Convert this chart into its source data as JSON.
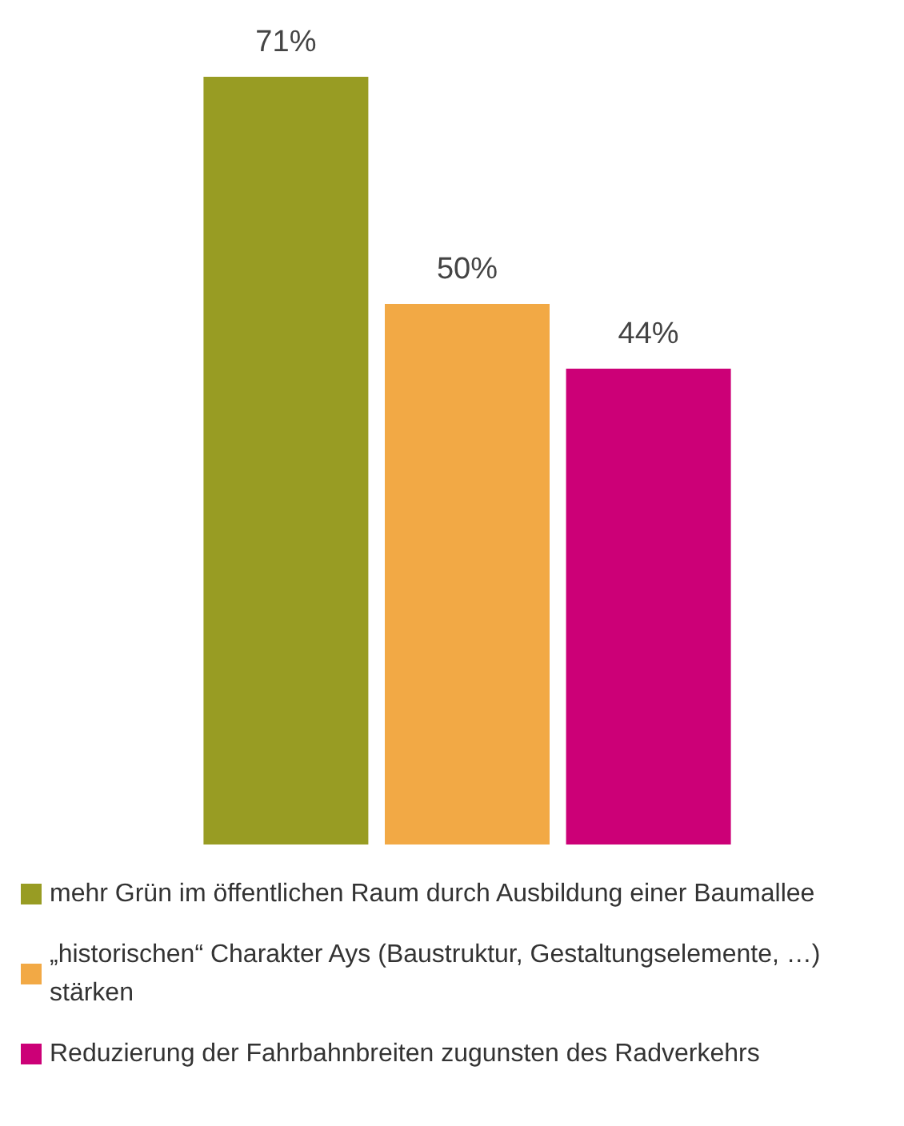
{
  "chart_data": {
    "type": "bar",
    "categories": [
      null
    ],
    "legend": "bottom",
    "data_labels": true,
    "series": [
      {
        "name": "mehr Grün im öffentlichen Raum durch Ausbildung einer Baumallee",
        "color": "#989c23",
        "values": [
          71
        ],
        "value_labels": [
          "71%"
        ]
      },
      {
        "name": "„historischen“ Charakter Ays (Baustruktur, Gestaltungselemente, …) stärken",
        "color": "#f2a945",
        "values": [
          50
        ],
        "value_labels": [
          "50%"
        ]
      },
      {
        "name": "Reduzierung der Fahrbahnbreiten zugunsten des Radverkehrs",
        "color": "#cc0077",
        "values": [
          44
        ],
        "value_labels": [
          "44%"
        ]
      }
    ]
  }
}
